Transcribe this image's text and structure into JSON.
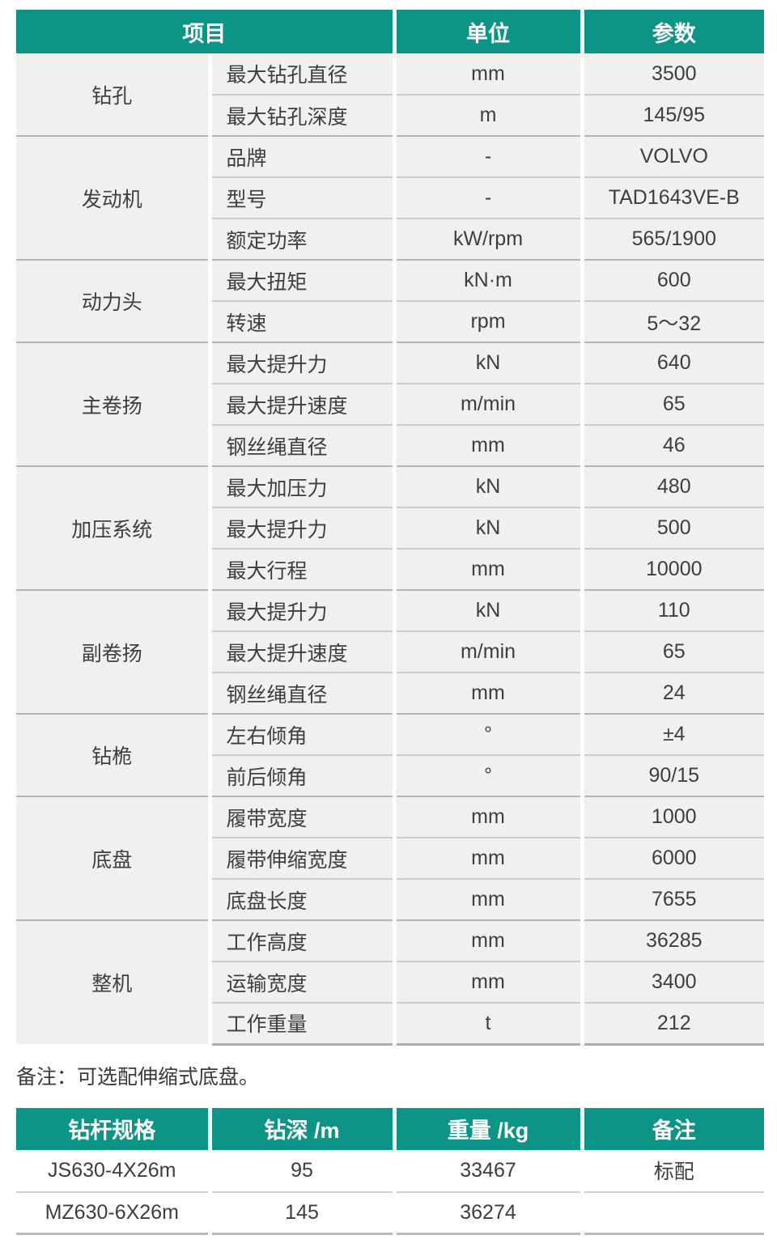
{
  "colors": {
    "header_bg": "#0c9487",
    "header_text": "#ffffff",
    "cell_bg": "#f0f0ee",
    "row_line": "#c9cdcc",
    "group_line": "#b2b6b5",
    "body_text": "#3e3e3e"
  },
  "spec_table": {
    "headers": [
      "项目",
      "单位",
      "参数"
    ],
    "groups": [
      {
        "category": "钻孔",
        "rows": [
          [
            "最大钻孔直径",
            "mm",
            "3500"
          ],
          [
            "最大钻孔深度",
            "m",
            "145/95"
          ]
        ]
      },
      {
        "category": "发动机",
        "rows": [
          [
            "品牌",
            "-",
            "VOLVO"
          ],
          [
            "型号",
            "-",
            "TAD1643VE-B"
          ],
          [
            "额定功率",
            "kW/rpm",
            "565/1900"
          ]
        ]
      },
      {
        "category": "动力头",
        "rows": [
          [
            "最大扭矩",
            "kN·m",
            "600"
          ],
          [
            "转速",
            "rpm",
            "5～32"
          ]
        ]
      },
      {
        "category": "主卷扬",
        "rows": [
          [
            "最大提升力",
            "kN",
            "640"
          ],
          [
            "最大提升速度",
            "m/min",
            "65"
          ],
          [
            "钢丝绳直径",
            "mm",
            "46"
          ]
        ]
      },
      {
        "category": "加压系统",
        "rows": [
          [
            "最大加压力",
            "kN",
            "480"
          ],
          [
            "最大提升力",
            "kN",
            "500"
          ],
          [
            "最大行程",
            "mm",
            "10000"
          ]
        ]
      },
      {
        "category": "副卷扬",
        "rows": [
          [
            "最大提升力",
            "kN",
            "110"
          ],
          [
            "最大提升速度",
            "m/min",
            "65"
          ],
          [
            "钢丝绳直径",
            "mm",
            "24"
          ]
        ]
      },
      {
        "category": "钻桅",
        "rows": [
          [
            "左右倾角",
            "°",
            "±4"
          ],
          [
            "前后倾角",
            "°",
            "90/15"
          ]
        ]
      },
      {
        "category": "底盘",
        "rows": [
          [
            "履带宽度",
            "mm",
            "1000"
          ],
          [
            "履带伸缩宽度",
            "mm",
            "6000"
          ],
          [
            "底盘长度",
            "mm",
            "7655"
          ]
        ]
      },
      {
        "category": "整机",
        "rows": [
          [
            "工作高度",
            "mm",
            "36285"
          ],
          [
            "运输宽度",
            "mm",
            "3400"
          ],
          [
            "工作重量",
            "t",
            "212"
          ]
        ]
      }
    ]
  },
  "note": "备注：可选配伸缩式底盘。",
  "pipe_table": {
    "headers": [
      "钻杆规格",
      "钻深 /m",
      "重量 /kg",
      "备注"
    ],
    "rows": [
      [
        "JS630-4X26m",
        "95",
        "33467",
        "标配"
      ],
      [
        "MZ630-6X26m",
        "145",
        "36274",
        ""
      ]
    ]
  }
}
